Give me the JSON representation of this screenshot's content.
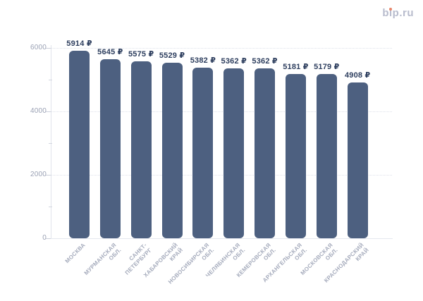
{
  "logo": {
    "text": "bip.ru",
    "color": "#b8bccd",
    "dot_color": "#e8866b"
  },
  "chart_data": {
    "type": "bar",
    "currency_suffix": "₽",
    "categories": [
      {
        "lines": [
          "МОСКВА"
        ]
      },
      {
        "lines": [
          "МУРМАНСКАЯ",
          "ОБЛ."
        ]
      },
      {
        "lines": [
          "САНКТ-",
          "ПЕТЕРБУРГ"
        ]
      },
      {
        "lines": [
          "ХАБАРОВСКИЙ",
          "КРАЙ"
        ]
      },
      {
        "lines": [
          "НОВОСИБИРСКАЯ",
          "ОБЛ."
        ]
      },
      {
        "lines": [
          "ЧЕЛЯБИНСКАЯ",
          "ОБЛ."
        ]
      },
      {
        "lines": [
          "КЕМЕРОВСКАЯ",
          "ОБЛ."
        ]
      },
      {
        "lines": [
          "АРХАНГЕЛЬСКАЯ",
          "ОБЛ."
        ]
      },
      {
        "lines": [
          "МОСКОВСКАЯ",
          "ОБЛ."
        ]
      },
      {
        "lines": [
          "КРАСНОДАРСКИЙ",
          "КРАЙ"
        ]
      }
    ],
    "values": [
      5914,
      5645,
      5575,
      5529,
      5382,
      5362,
      5362,
      5181,
      5179,
      4908
    ],
    "value_labels": [
      "5914 ₽",
      "5645 ₽",
      "5575 ₽",
      "5529 ₽",
      "5382 ₽",
      "5362 ₽",
      "5362 ₽",
      "5181 ₽",
      "5179 ₽",
      "4908 ₽"
    ],
    "y_axis": {
      "ylim": [
        0,
        6000
      ],
      "ticks": [
        {
          "value": 6000,
          "label": "6000"
        },
        {
          "value": 4000,
          "label": "4000"
        },
        {
          "value": 2000,
          "label": "2000"
        },
        {
          "value": 0,
          "label": "0"
        }
      ],
      "minor_ticks": [
        5000,
        3000,
        1000
      ]
    },
    "grid": "dotted-horizontal",
    "legend": "none",
    "bar_color": "#4d6080",
    "value_label_color": "#2d3e5e",
    "y_label_color": "#9aa1b4",
    "x_label_color": "#a5abbc"
  }
}
